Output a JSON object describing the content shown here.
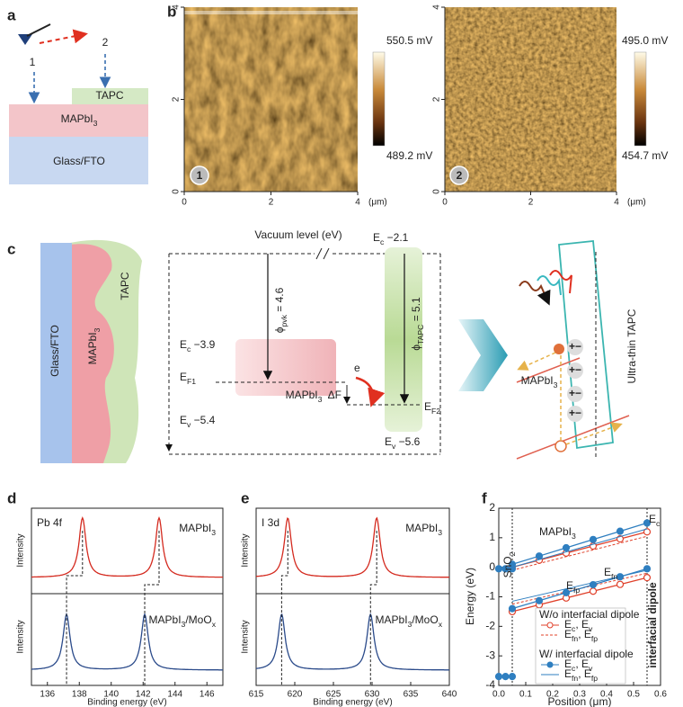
{
  "panel_labels": [
    "a",
    "b",
    "c",
    "d",
    "e",
    "f"
  ],
  "a": {
    "tip_labels": [
      "1",
      "2"
    ],
    "layers": [
      "TAPC",
      [
        "MAPbI",
        "3"
      ],
      "Glass/FTO"
    ]
  },
  "b": {
    "images": [
      {
        "marker": "1",
        "top": "550.5 mV",
        "bottom": "489.2 mV"
      },
      {
        "marker": "2",
        "top": "495.0 mV",
        "bottom": "454.7 mV"
      }
    ],
    "xlim": [
      0,
      4
    ],
    "xticks": [
      0,
      2,
      4
    ],
    "ylim": [
      0,
      4
    ],
    "yticks": [
      0,
      2,
      4
    ],
    "unit": "(μm)"
  },
  "c": {
    "device": [
      "Glass/FTO",
      [
        "MAPbI",
        "3"
      ],
      "TAPC"
    ],
    "vacuum": "Vacuum level (eV)",
    "pvk": {
      "ec": [
        "E",
        "c",
        "  −3.9"
      ],
      "ef": [
        "E",
        "F1"
      ],
      "ev": [
        "E",
        "v",
        "  −5.4"
      ],
      "phi": [
        "ϕ",
        "pvk",
        " = 4.6"
      ],
      "name": [
        "MAPbI",
        "3"
      ]
    },
    "electron": "e",
    "delta": "ΔF",
    "tapc": {
      "ec": [
        "E",
        "c",
        "  −2.1"
      ],
      "phi": [
        "ϕ",
        "TAPC",
        " = 5.1"
      ],
      "ef": [
        "E",
        "F2"
      ],
      "ev": [
        "E",
        "v",
        "  −5.6"
      ]
    },
    "schematic": {
      "name": [
        "MAPbI",
        "3"
      ],
      "layer": "Ultra-thin TAPC",
      "charges": [
        "+−",
        "+−",
        "+−",
        "+−"
      ]
    }
  },
  "d": {
    "type": "line",
    "element": "Pb 4f",
    "ylabel": "Intensity",
    "xlabel": "Binding energy (eV)",
    "xlim": [
      135,
      147
    ],
    "xticks": [
      136,
      138,
      140,
      142,
      144,
      146
    ],
    "series": [
      {
        "name": [
          "MAPbI",
          "3"
        ],
        "color": "#d42a1f",
        "peaks": [
          138.2,
          143.0
        ]
      },
      {
        "name": [
          "MAPbI",
          "3",
          "/MoO",
          "x"
        ],
        "color": "#2a4a8a",
        "peaks": [
          137.2,
          142.1
        ]
      }
    ]
  },
  "e": {
    "type": "line",
    "element": "I 3d",
    "ylabel": "Intensity",
    "xlabel": "Binding energy (eV)",
    "xlim": [
      615,
      640
    ],
    "xticks": [
      615,
      620,
      625,
      630,
      635,
      640
    ],
    "series": [
      {
        "name": [
          "MAPbI",
          "3"
        ],
        "color": "#d42a1f",
        "peaks": [
          619.1,
          630.6
        ]
      },
      {
        "name": [
          "MAPbI",
          "3",
          "/MoO",
          "x"
        ],
        "color": "#2a4a8a",
        "peaks": [
          618.3,
          629.8
        ]
      }
    ]
  },
  "f": {
    "type": "line",
    "ylabel": "Energy (eV)",
    "xlabel": "Position (μm)",
    "xlim": [
      0,
      0.6
    ],
    "xticks": [
      {
        "value": 0,
        "label": "0.0"
      },
      0.1,
      0.2,
      0.3,
      0.4,
      0.5,
      0.6
    ],
    "ylim": [
      -4,
      2
    ],
    "yticks": [
      -4,
      -3,
      -2,
      -1,
      0,
      1,
      2
    ],
    "boundaries": [
      0.05,
      0.55
    ],
    "annotations": {
      "material": [
        "MAPbI",
        "3"
      ],
      "efn": [
        "E",
        "fn"
      ],
      "efp": [
        "E",
        "fp"
      ],
      "ec": [
        "E",
        "c"
      ],
      "sno2": [
        "SnO",
        "2"
      ],
      "dipole": "interfacial dipole"
    },
    "groups": [
      {
        "title": "W/o interfacial dipole",
        "color": "#e0402a",
        "band": {
          "name": [
            "E",
            "c",
            ", E",
            "v"
          ],
          "marker": "open",
          "lines": [
            {
              "x": [
                0.05,
                0.15,
                0.25,
                0.35,
                0.45,
                0.55
              ],
              "values": [
                0.0,
                0.24,
                0.48,
                0.72,
                0.96,
                1.2
              ]
            },
            {
              "x": [
                0.05,
                0.15,
                0.25,
                0.35,
                0.45,
                0.55
              ],
              "values": [
                -1.5,
                -1.27,
                -1.04,
                -0.81,
                -0.58,
                -0.35
              ]
            }
          ]
        },
        "fermi": {
          "name": [
            "E",
            "fn",
            ", E",
            "fp"
          ],
          "dash": true,
          "lines": [
            {
              "x": [
                0.05,
                0.55
              ],
              "values": [
                -0.1,
                1.05
              ]
            },
            {
              "x": [
                0.05,
                0.55
              ],
              "values": [
                -1.25,
                -0.2
              ]
            }
          ]
        }
      },
      {
        "title": "W/ interfacial dipole",
        "color": "#2f7fc0",
        "band": {
          "name": [
            "E",
            "c",
            ", E",
            "v"
          ],
          "marker": "filled",
          "lines": [
            {
              "x": [
                0.05,
                0.15,
                0.25,
                0.35,
                0.45,
                0.55
              ],
              "values": [
                0.1,
                0.38,
                0.66,
                0.94,
                1.22,
                1.5
              ]
            },
            {
              "x": [
                0.05,
                0.15,
                0.25,
                0.35,
                0.45,
                0.55
              ],
              "values": [
                -1.4,
                -1.13,
                -0.86,
                -0.59,
                -0.32,
                -0.05
              ]
            },
            {
              "x": [
                0.0,
                0.025,
                0.05
              ],
              "values": [
                -3.7,
                -3.7,
                -3.7
              ]
            },
            {
              "x": [
                0.0,
                0.025,
                0.05
              ],
              "values": [
                -0.05,
                -0.05,
                -0.05
              ]
            }
          ]
        },
        "fermi": {
          "name": [
            "E",
            "fn",
            ", E",
            "fp"
          ],
          "dash": false,
          "lines": [
            {
              "x": [
                0.05,
                0.55
              ],
              "values": [
                0.0,
                1.3
              ]
            },
            {
              "x": [
                0.05,
                0.55
              ],
              "values": [
                -1.15,
                -0.1
              ]
            }
          ]
        }
      }
    ]
  }
}
